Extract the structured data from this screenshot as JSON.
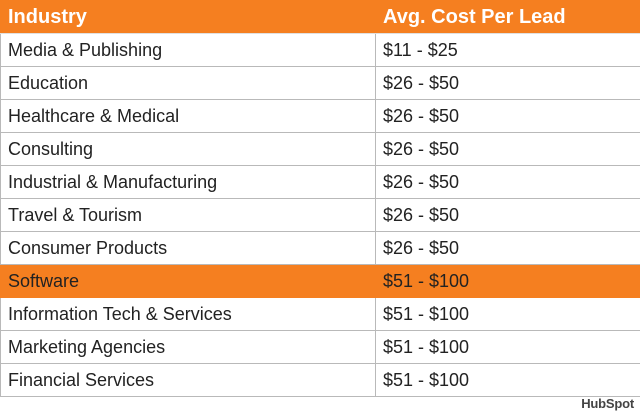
{
  "chart_data": {
    "type": "table",
    "columns": [
      "Industry",
      "Avg. Cost Per Lead"
    ],
    "rows": [
      [
        "Media & Publishing",
        "$11 - $25"
      ],
      [
        "Education",
        "$26 - $50"
      ],
      [
        "Healthcare & Medical",
        "$26 - $50"
      ],
      [
        "Consulting",
        "$26 - $50"
      ],
      [
        "Industrial & Manufacturing",
        "$26 - $50"
      ],
      [
        "Travel & Tourism",
        "$26 - $50"
      ],
      [
        "Consumer Products",
        "$26 - $50"
      ],
      [
        "Software",
        "$51 - $100"
      ],
      [
        "Information Tech & Services",
        "$51 - $100"
      ],
      [
        "Marketing Agencies",
        "$51 - $100"
      ],
      [
        "Financial Services",
        "$51 - $100"
      ]
    ],
    "highlighted_row": "Software"
  },
  "colors": {
    "accent": "#f57f20",
    "grid": "#b9b9b9",
    "text": "#222222"
  },
  "brand": {
    "label": "HubSpot"
  }
}
